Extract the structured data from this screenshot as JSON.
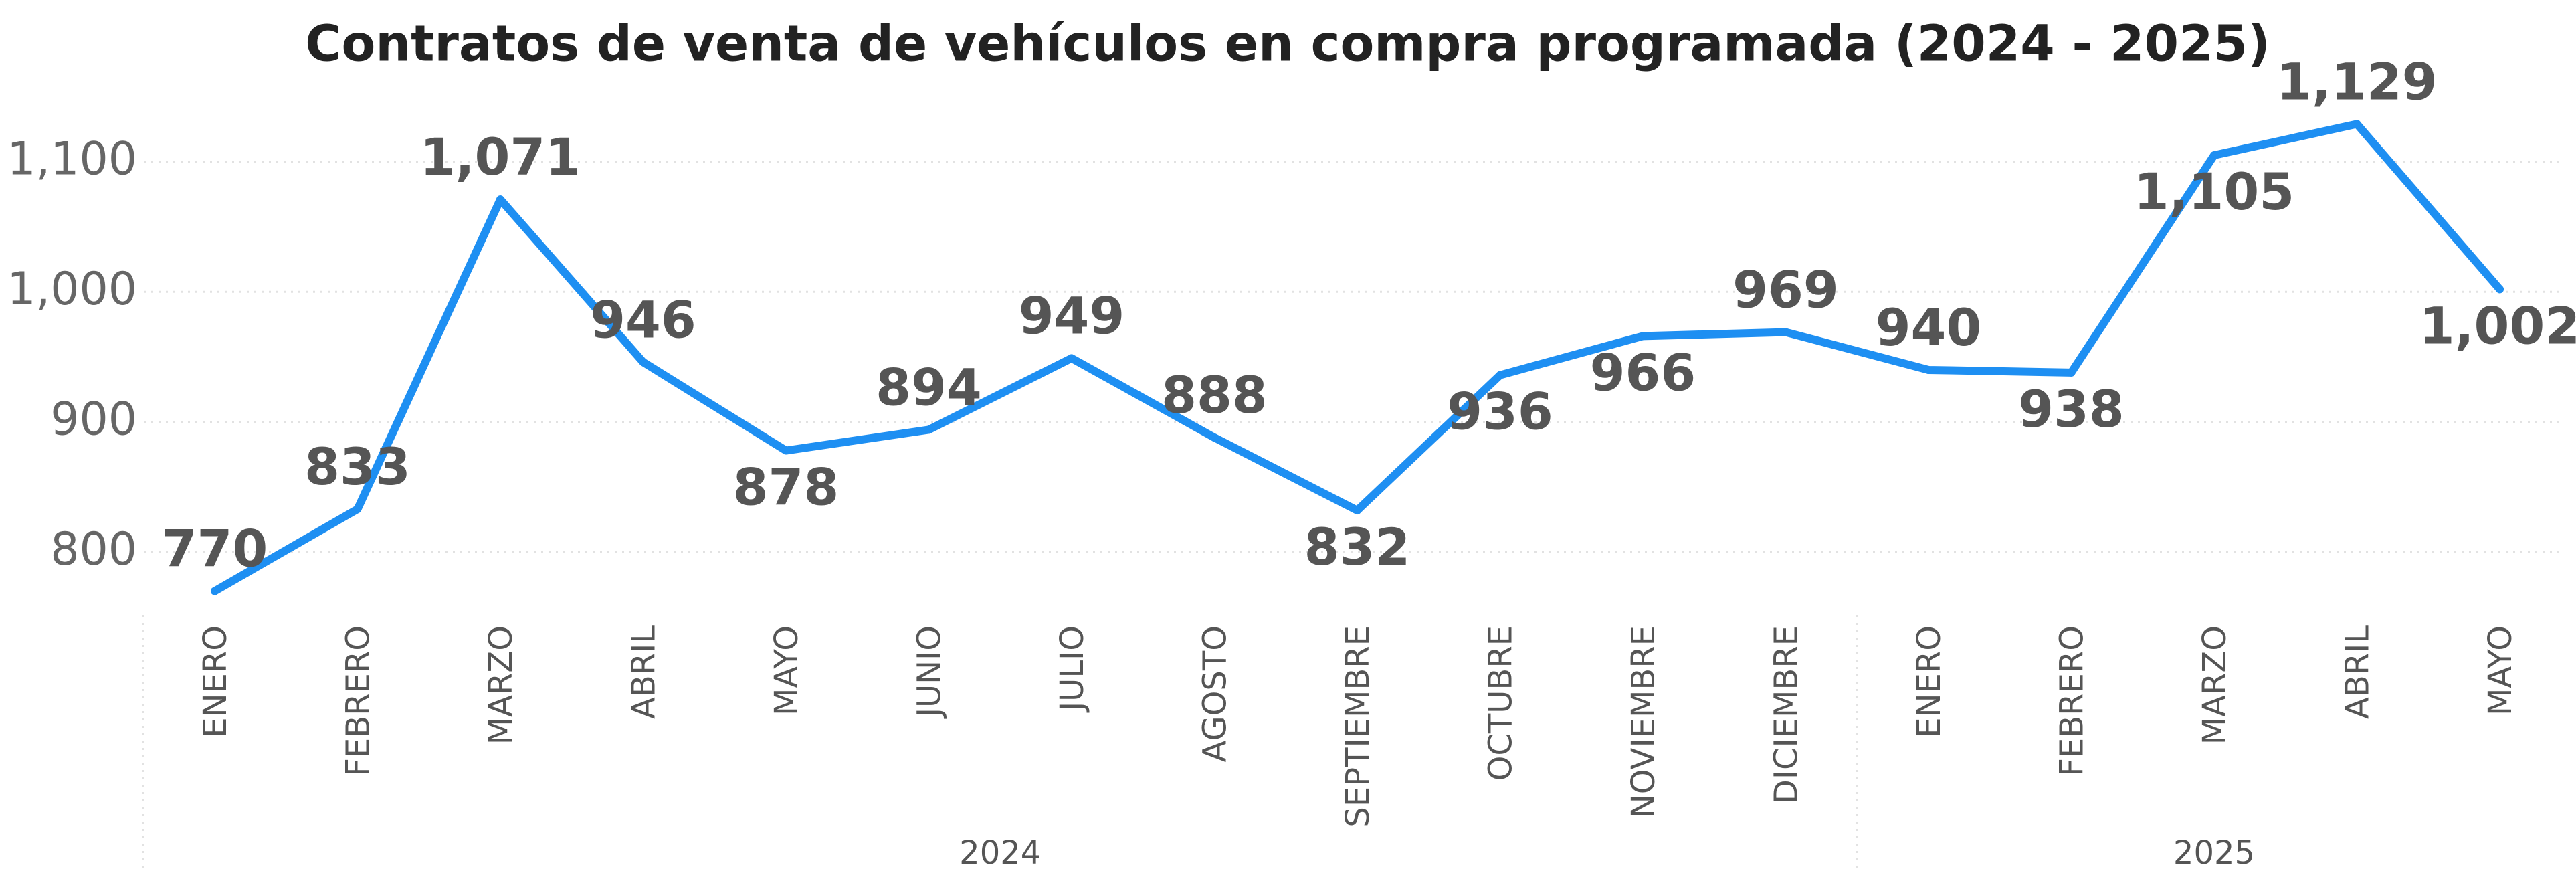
{
  "chart_data": {
    "type": "line",
    "title": "Contratos de venta de vehículos en compra programada (2024 - 2025)",
    "category_groups": [
      {
        "name": "2024",
        "categories": [
          "ENERO",
          "FEBRERO",
          "MARZO",
          "ABRIL",
          "MAYO",
          "JUNIO",
          "JULIO",
          "AGOSTO",
          "SEPTIEMBRE",
          "OCTUBRE",
          "NOVIEMBRE",
          "DICIEMBRE"
        ]
      },
      {
        "name": "2025",
        "categories": [
          "ENERO",
          "FEBRERO",
          "MARZO",
          "ABRIL",
          "MAYO"
        ]
      }
    ],
    "values": [
      770,
      833,
      1071,
      946,
      878,
      894,
      949,
      888,
      832,
      936,
      966,
      969,
      940,
      938,
      1105,
      1129,
      1002
    ],
    "value_labels": [
      "770",
      "833",
      "1,071",
      "946",
      "878",
      "894",
      "949",
      "888",
      "832",
      "936",
      "966",
      "969",
      "940",
      "938",
      "1,105",
      "1,129",
      "1,002"
    ],
    "color": "#1e8ff2",
    "ylim": [
      760,
      1140
    ],
    "yticks": [
      800,
      900,
      {
        "value": 1000,
        "label": "1,000"
      },
      {
        "value": 1100,
        "label": "1,100"
      }
    ],
    "grid": true
  }
}
